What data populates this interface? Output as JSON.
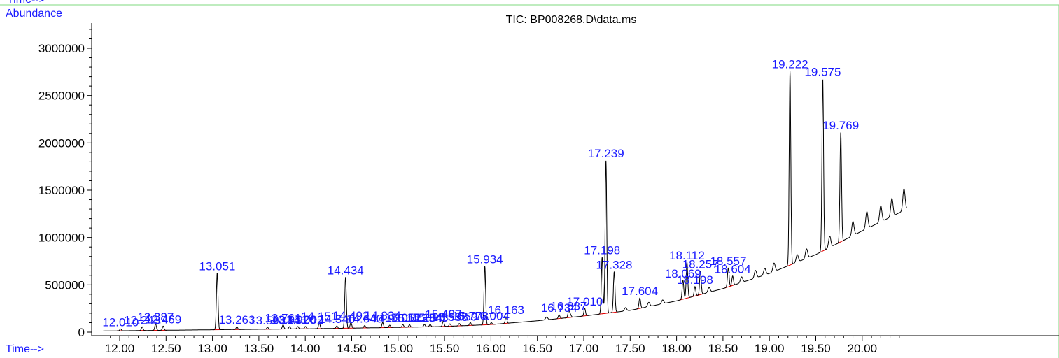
{
  "chart_data": {
    "type": "line",
    "title": "TIC: BP008268.D\\data.ms",
    "xlabel": "Time-->",
    "ylabel": "Abundance",
    "header_fragment": "Time-->",
    "xlim": [
      11.82,
      20.48
    ],
    "ylim": [
      0,
      3250000
    ],
    "xticks": [
      12.0,
      12.5,
      13.0,
      13.5,
      14.0,
      14.5,
      15.0,
      15.5,
      16.0,
      16.5,
      17.0,
      17.5,
      18.0,
      18.5,
      19.0,
      19.5,
      20.0
    ],
    "xtick_labels": [
      "12.00",
      "12.50",
      "13.00",
      "13.50",
      "14.00",
      "14.50",
      "15.00",
      "15.50",
      "16.00",
      "16.50",
      "17.00",
      "17.50",
      "18.00",
      "18.50",
      "19.00",
      "19.50",
      "20.00"
    ],
    "yticks": [
      0,
      500000,
      1000000,
      1500000,
      2000000,
      2500000,
      3000000
    ],
    "ytick_labels": [
      "0",
      "500000",
      "1000000",
      "1500000",
      "2000000",
      "2500000",
      "3000000"
    ],
    "grid": false,
    "colors": {
      "trace": "#000000",
      "labels": "#1a1aff",
      "frame": "#7fd87f",
      "baseline": "#e00000"
    },
    "baseline": [
      [
        11.82,
        12000
      ],
      [
        13.0,
        25000
      ],
      [
        14.0,
        35000
      ],
      [
        15.0,
        50000
      ],
      [
        15.5,
        60000
      ],
      [
        16.0,
        80000
      ],
      [
        16.5,
        120000
      ],
      [
        17.0,
        170000
      ],
      [
        17.5,
        230000
      ],
      [
        18.0,
        330000
      ],
      [
        18.5,
        460000
      ],
      [
        19.0,
        620000
      ],
      [
        19.5,
        820000
      ],
      [
        20.0,
        1070000
      ],
      [
        20.48,
        1300000
      ]
    ],
    "noise": [
      [
        16.6,
        30000
      ],
      [
        16.85,
        40000
      ],
      [
        17.45,
        35000
      ],
      [
        17.7,
        45000
      ],
      [
        17.85,
        40000
      ],
      [
        18.35,
        50000
      ],
      [
        18.7,
        60000
      ],
      [
        18.85,
        80000
      ],
      [
        18.95,
        70000
      ],
      [
        19.05,
        90000
      ],
      [
        19.3,
        80000
      ],
      [
        19.4,
        100000
      ],
      [
        19.65,
        120000
      ],
      [
        19.9,
        150000
      ],
      [
        20.05,
        180000
      ],
      [
        20.2,
        170000
      ],
      [
        20.32,
        190000
      ],
      [
        20.45,
        230000
      ]
    ],
    "peaks": [
      {
        "label": "12.010",
        "rt": 12.01,
        "height": 20000
      },
      {
        "label": "12.243",
        "rt": 12.243,
        "height": 40000
      },
      {
        "label": "12.387",
        "rt": 12.387,
        "height": 70000
      },
      {
        "label": "12.469",
        "rt": 12.469,
        "height": 45000
      },
      {
        "label": "13.051",
        "rt": 13.051,
        "height": 600000
      },
      {
        "label": "13.263",
        "rt": 13.263,
        "height": 30000
      },
      {
        "label": "13.593",
        "rt": 13.593,
        "height": 20000
      },
      {
        "label": "13.761",
        "rt": 13.761,
        "height": 45000
      },
      {
        "label": "13.831",
        "rt": 13.831,
        "height": 25000
      },
      {
        "label": "13.920",
        "rt": 13.92,
        "height": 25000
      },
      {
        "label": "14.002",
        "rt": 14.002,
        "height": 25000
      },
      {
        "label": "14.151",
        "rt": 14.151,
        "height": 60000
      },
      {
        "label": "14.340",
        "rt": 14.34,
        "height": 25000
      },
      {
        "label": "14.434",
        "rt": 14.434,
        "height": 540000
      },
      {
        "label": "14.492",
        "rt": 14.492,
        "height": 60000
      },
      {
        "label": "14.640",
        "rt": 14.64,
        "height": 25000
      },
      {
        "label": "14.834",
        "rt": 14.834,
        "height": 55000
      },
      {
        "label": "14.910",
        "rt": 14.91,
        "height": 25000
      },
      {
        "label": "15.051",
        "rt": 15.051,
        "height": 30000
      },
      {
        "label": "15.123",
        "rt": 15.123,
        "height": 25000
      },
      {
        "label": "15.284",
        "rt": 15.284,
        "height": 25000
      },
      {
        "label": "15.345",
        "rt": 15.345,
        "height": 25000
      },
      {
        "label": "15.487",
        "rt": 15.487,
        "height": 60000
      },
      {
        "label": "15.558",
        "rt": 15.558,
        "height": 25000
      },
      {
        "label": "15.659",
        "rt": 15.659,
        "height": 25000
      },
      {
        "label": "15.778",
        "rt": 15.778,
        "height": 30000
      },
      {
        "label": "15.934",
        "rt": 15.934,
        "height": 620000
      },
      {
        "label": "16.004",
        "rt": 16.004,
        "height": 20000
      },
      {
        "label": "16.163",
        "rt": 16.163,
        "height": 70000
      },
      {
        "label": "16.734",
        "rt": 16.734,
        "height": 40000
      },
      {
        "label": "16.837",
        "rt": 16.837,
        "height": 50000
      },
      {
        "label": "17.010",
        "rt": 17.01,
        "height": 80000
      },
      {
        "label": "17.198",
        "rt": 17.198,
        "height": 600000
      },
      {
        "label": "17.239",
        "rt": 17.239,
        "height": 1620000
      },
      {
        "label": "17.328",
        "rt": 17.328,
        "height": 430000
      },
      {
        "label": "17.604",
        "rt": 17.604,
        "height": 110000
      },
      {
        "label": "18.069",
        "rt": 18.069,
        "height": 200000
      },
      {
        "label": "18.112",
        "rt": 18.112,
        "height": 380000
      },
      {
        "label": "18.198",
        "rt": 18.198,
        "height": 100000
      },
      {
        "label": "18.257",
        "rt": 18.257,
        "height": 250000
      },
      {
        "label": "18.557",
        "rt": 18.557,
        "height": 200000
      },
      {
        "label": "18.604",
        "rt": 18.604,
        "height": 100000
      },
      {
        "label": "19.222",
        "rt": 19.222,
        "height": 2050000
      },
      {
        "label": "19.575",
        "rt": 19.575,
        "height": 1820000
      },
      {
        "label": "19.769",
        "rt": 19.769,
        "height": 1160000
      }
    ]
  }
}
